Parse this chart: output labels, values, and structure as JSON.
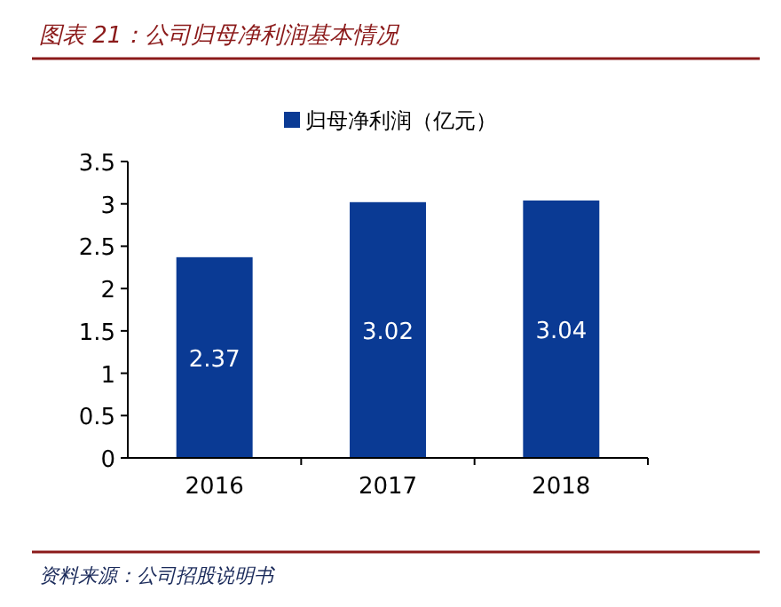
{
  "chart_data": {
    "type": "bar",
    "title": "图表 21：公司归母净利润基本情况",
    "categories": [
      "2016",
      "2017",
      "2018"
    ],
    "series": [
      {
        "name": "归母净利润（亿元）",
        "color": "#0a3a94",
        "values": [
          2.37,
          3.02,
          3.04
        ]
      }
    ],
    "ylim": [
      0,
      3.5
    ],
    "yticks": [
      0,
      0.5,
      1,
      1.5,
      2,
      2.5,
      3,
      3.5
    ],
    "data_labels": true,
    "legend": "top",
    "grid": false,
    "annotations": [
      "资料来源：公司招股说明书"
    ]
  }
}
